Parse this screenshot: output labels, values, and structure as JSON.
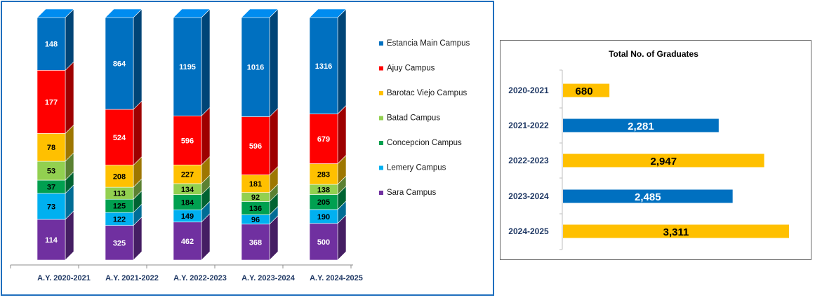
{
  "chart_data": [
    {
      "type": "bar",
      "stacked": true,
      "categories": [
        "A.Y. 2020-2021",
        "A.Y. 2021-2022",
        "A.Y. 2022-2023",
        "A.Y. 2023-2024",
        "A.Y. 2024-2025"
      ],
      "legend_position": "right",
      "series": [
        {
          "name": "Sara Campus",
          "color": "#7030a0",
          "values": [
            114,
            325,
            462,
            368,
            500
          ]
        },
        {
          "name": "Lemery Campus",
          "color": "#00b0f0",
          "values": [
            73,
            122,
            149,
            96,
            190
          ]
        },
        {
          "name": "Concepcion Campus",
          "color": "#00a050",
          "values": [
            37,
            125,
            184,
            136,
            205
          ]
        },
        {
          "name": "Batad Campus",
          "color": "#92d050",
          "values": [
            53,
            113,
            134,
            92,
            138
          ]
        },
        {
          "name": "Barotac Viejo Campus",
          "color": "#ffc000",
          "values": [
            78,
            208,
            227,
            181,
            283
          ]
        },
        {
          "name": "Ajuy Campus",
          "color": "#ff0000",
          "values": [
            177,
            524,
            596,
            596,
            679
          ]
        },
        {
          "name": "Estancia Main Campus",
          "color": "#0070c0",
          "values": [
            148,
            864,
            1195,
            1016,
            1316
          ]
        }
      ],
      "legend_order": [
        "Estancia Main Campus",
        "Ajuy Campus",
        "Barotac Viejo Campus",
        "Batad Campus",
        "Concepcion Campus",
        "Lemery Campus",
        "Sara Campus"
      ]
    },
    {
      "type": "bar",
      "orientation": "horizontal",
      "title": "Total No. of Graduates",
      "categories": [
        "2020-2021",
        "2021-2022",
        "2022-2023",
        "2023-2024",
        "2024-2025"
      ],
      "values": [
        680,
        2281,
        2947,
        2485,
        3311
      ],
      "value_labels": [
        "680",
        "2,281",
        "2,947",
        "2,485",
        "3,311"
      ],
      "colors": [
        "#ffc000",
        "#0070c0",
        "#ffc000",
        "#0070c0",
        "#ffc000"
      ],
      "xlim": [
        0,
        3500
      ]
    }
  ]
}
